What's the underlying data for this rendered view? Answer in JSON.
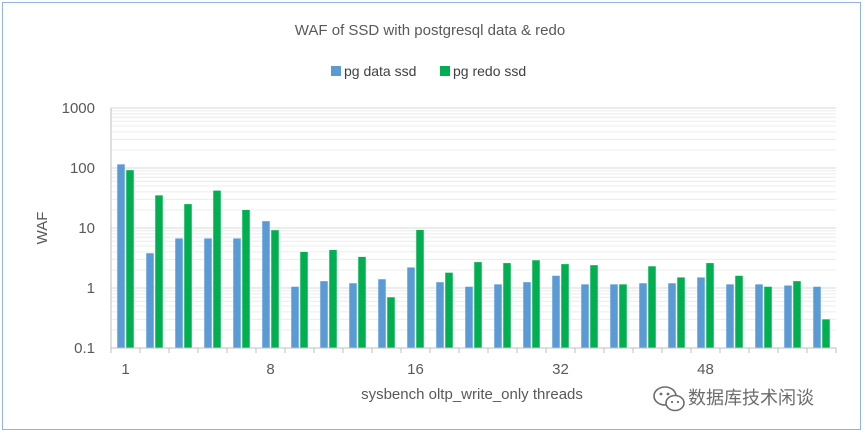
{
  "chart_data": {
    "type": "bar",
    "title": "WAF of SSD with postgresql data & redo",
    "xlabel": "sysbench oltp_write_only threads",
    "ylabel": "WAF",
    "yscale": "log",
    "ylim": [
      0.1,
      1000
    ],
    "yticks": [
      "1000",
      "100",
      "10",
      "1",
      "0.1"
    ],
    "ytick_values": [
      1000,
      100,
      10,
      1,
      0.1
    ],
    "legend_position": "top-center",
    "grid": true,
    "categories": [
      1,
      2,
      3,
      4,
      5,
      6,
      7,
      8,
      9,
      10,
      11,
      12,
      13,
      14,
      15,
      16,
      17,
      18,
      19,
      20,
      21,
      22,
      23,
      24,
      25
    ],
    "xtick_labels": [
      {
        "category": 1,
        "label": "1"
      },
      {
        "category": 6,
        "label": "8"
      },
      {
        "category": 11,
        "label": "16"
      },
      {
        "category": 16,
        "label": "32"
      },
      {
        "category": 21,
        "label": "48"
      }
    ],
    "series": [
      {
        "name": "pg data ssd",
        "color": "#5b9bd5",
        "values": [
          115,
          3.8,
          6.7,
          6.7,
          6.7,
          13,
          1.05,
          1.3,
          1.2,
          1.4,
          2.2,
          1.25,
          1.05,
          1.15,
          1.25,
          1.6,
          1.15,
          1.15,
          1.2,
          1.2,
          1.5,
          1.15,
          1.15,
          1.1,
          1.05
        ]
      },
      {
        "name": "pg redo ssd",
        "color": "#00b050",
        "values": [
          92,
          35,
          25,
          42,
          20,
          9.2,
          4.0,
          4.3,
          3.3,
          0.7,
          9.3,
          1.8,
          2.7,
          2.6,
          2.9,
          2.5,
          2.4,
          1.15,
          2.3,
          1.5,
          2.6,
          1.6,
          1.05,
          1.3,
          0.3
        ]
      }
    ]
  },
  "watermark": {
    "text": "数据库技术闲谈",
    "icon": "wechat-icon",
    "color": "#6b6b6b"
  }
}
